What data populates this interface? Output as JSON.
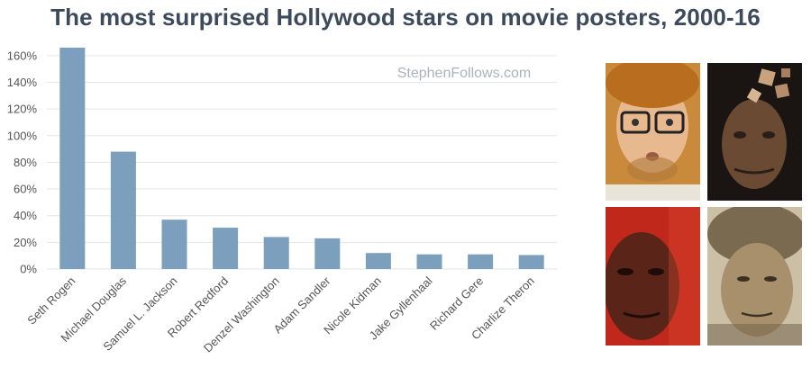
{
  "title": "The most surprised Hollywood stars on movie posters, 2000-16",
  "watermark": "StephenFollows.com",
  "colors": {
    "bar": "#7c9fbd",
    "grid": "#e3e6ea",
    "title": "#3d4a5c"
  },
  "chart_data": {
    "type": "bar",
    "title": "The most surprised Hollywood stars on movie posters, 2000-16",
    "categories": [
      "Seth Rogen",
      "Michael Douglas",
      "Samuel L. Jackson",
      "Robert Redford",
      "Denzel Washington",
      "Adam Sandler",
      "Nicole Kidman",
      "Jake Gyllenhaal",
      "Richard Gere",
      "Charlize Theron"
    ],
    "values": [
      166,
      88,
      37,
      31,
      24,
      23,
      12,
      11,
      11,
      10.5
    ],
    "yticks": [
      "0%",
      "20%",
      "40%",
      "60%",
      "80%",
      "100%",
      "120%",
      "140%",
      "160%"
    ],
    "ylim": [
      0,
      170
    ],
    "y_unit": "percent",
    "grid": true
  },
  "photos": [
    {
      "name": "seth-rogen-photo"
    },
    {
      "name": "michael-douglas-photo"
    },
    {
      "name": "samuel-l-jackson-photo"
    },
    {
      "name": "robert-redford-photo"
    }
  ]
}
